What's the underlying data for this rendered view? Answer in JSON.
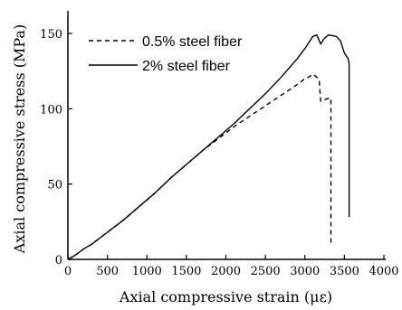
{
  "chart_data": {
    "type": "line",
    "xlabel": "Axial compressive strain (με)",
    "ylabel": "Axial compressive stress (MPa)",
    "xlim": [
      0,
      4000
    ],
    "ylim": [
      0,
      165
    ],
    "x_ticks": [
      0,
      500,
      1000,
      1500,
      2000,
      2500,
      3000,
      3500,
      4000
    ],
    "y_ticks": [
      0,
      50,
      100,
      150
    ],
    "grid": false,
    "legend_position": "top-left",
    "series": [
      {
        "name": "0.5% steel fiber",
        "style": "dashed",
        "color": "#000000",
        "points": [
          [
            0,
            0
          ],
          [
            100,
            3
          ],
          [
            200,
            7
          ],
          [
            300,
            10
          ],
          [
            500,
            18
          ],
          [
            700,
            26
          ],
          [
            900,
            35
          ],
          [
            1100,
            44
          ],
          [
            1300,
            54
          ],
          [
            1500,
            63
          ],
          [
            1700,
            72
          ],
          [
            1900,
            80
          ],
          [
            2100,
            88
          ],
          [
            2300,
            95
          ],
          [
            2500,
            102
          ],
          [
            2700,
            109
          ],
          [
            2900,
            116
          ],
          [
            3000,
            120
          ],
          [
            3050,
            121
          ],
          [
            3100,
            123
          ],
          [
            3150,
            121
          ],
          [
            3180,
            119
          ],
          [
            3200,
            105
          ],
          [
            3250,
            106
          ],
          [
            3300,
            107
          ],
          [
            3330,
            107
          ],
          [
            3330,
            10
          ]
        ]
      },
      {
        "name": "2% steel fiber",
        "style": "solid",
        "color": "#000000",
        "points": [
          [
            0,
            0
          ],
          [
            100,
            3
          ],
          [
            200,
            7
          ],
          [
            300,
            10
          ],
          [
            500,
            18
          ],
          [
            700,
            26
          ],
          [
            900,
            35
          ],
          [
            1100,
            44
          ],
          [
            1300,
            54
          ],
          [
            1500,
            63
          ],
          [
            1700,
            72
          ],
          [
            1900,
            81
          ],
          [
            2100,
            90
          ],
          [
            2300,
            100
          ],
          [
            2500,
            110
          ],
          [
            2700,
            121
          ],
          [
            2900,
            133
          ],
          [
            3000,
            140
          ],
          [
            3100,
            148
          ],
          [
            3150,
            149
          ],
          [
            3200,
            143
          ],
          [
            3250,
            147
          ],
          [
            3300,
            149
          ],
          [
            3400,
            148
          ],
          [
            3450,
            145
          ],
          [
            3500,
            137
          ],
          [
            3550,
            133
          ],
          [
            3560,
            130
          ],
          [
            3560,
            28
          ]
        ]
      }
    ]
  }
}
